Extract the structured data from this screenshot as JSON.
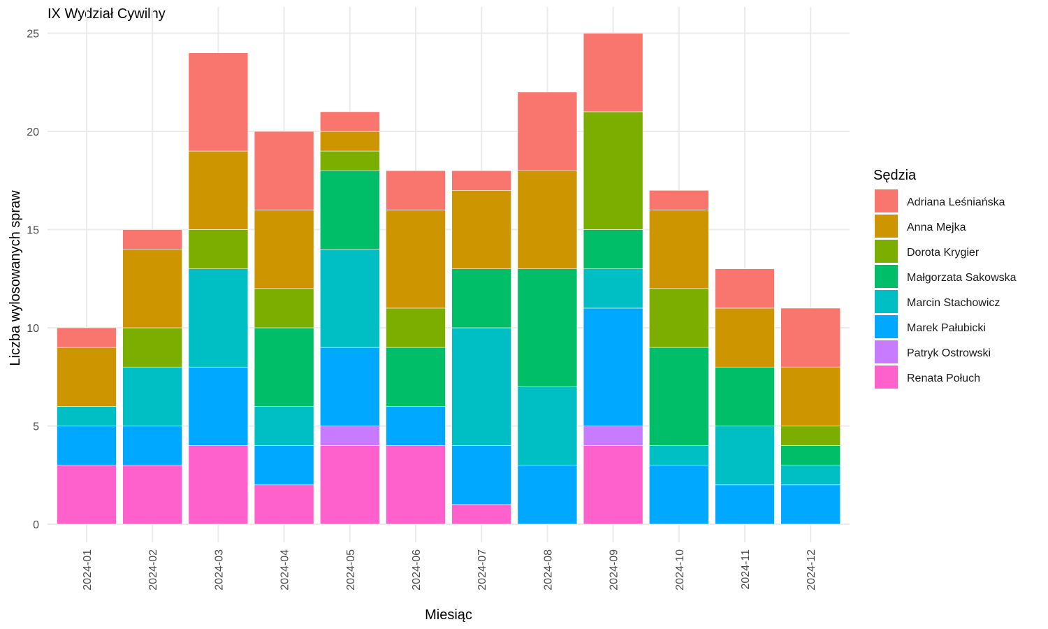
{
  "chart_data": {
    "type": "bar",
    "stacked": true,
    "title": "IX Wydział Cywilny",
    "xlabel": "Miesiąc",
    "ylabel": "Liczba wylosowanych spraw",
    "ylim": [
      0,
      26.5
    ],
    "yticks": [
      0,
      5,
      10,
      15,
      20,
      25
    ],
    "grid": true,
    "legend_title": "Sędzia",
    "legend_position": "right",
    "categories": [
      "2024-01",
      "2024-02",
      "2024-03",
      "2024-04",
      "2024-05",
      "2024-06",
      "2024-07",
      "2024-08",
      "2024-09",
      "2024-10",
      "2024-11",
      "2024-12"
    ],
    "series": [
      {
        "name": "Adriana Leśniańska",
        "color": "#F8766D",
        "values": [
          1,
          1,
          5,
          4,
          1,
          2,
          1,
          4,
          4,
          1,
          2,
          3
        ]
      },
      {
        "name": "Anna Mejka",
        "color": "#CD9600",
        "values": [
          3,
          4,
          4,
          4,
          1,
          5,
          4,
          5,
          0,
          4,
          3,
          3
        ]
      },
      {
        "name": "Dorota Krygier",
        "color": "#7CAE00",
        "values": [
          0,
          2,
          2,
          2,
          1,
          2,
          0,
          0,
          6,
          3,
          0,
          1
        ]
      },
      {
        "name": "Małgorzata Sakowska",
        "color": "#00BE67",
        "values": [
          0,
          0,
          0,
          4,
          4,
          3,
          3,
          6,
          2,
          5,
          3,
          1
        ]
      },
      {
        "name": "Marcin Stachowicz",
        "color": "#00BFC4",
        "values": [
          1,
          3,
          5,
          2,
          5,
          0,
          6,
          4,
          2,
          1,
          3,
          1
        ]
      },
      {
        "name": "Marek Pałubicki",
        "color": "#00A9FF",
        "values": [
          2,
          2,
          4,
          2,
          4,
          2,
          3,
          3,
          6,
          3,
          2,
          2
        ]
      },
      {
        "name": "Patryk Ostrowski",
        "color": "#C77CFF",
        "values": [
          0,
          0,
          0,
          0,
          1,
          0,
          0,
          0,
          1,
          0,
          0,
          0
        ]
      },
      {
        "name": "Renata Połuch",
        "color": "#FF61CC",
        "values": [
          3,
          3,
          4,
          2,
          4,
          4,
          1,
          0,
          4,
          0,
          0,
          0
        ]
      }
    ]
  }
}
